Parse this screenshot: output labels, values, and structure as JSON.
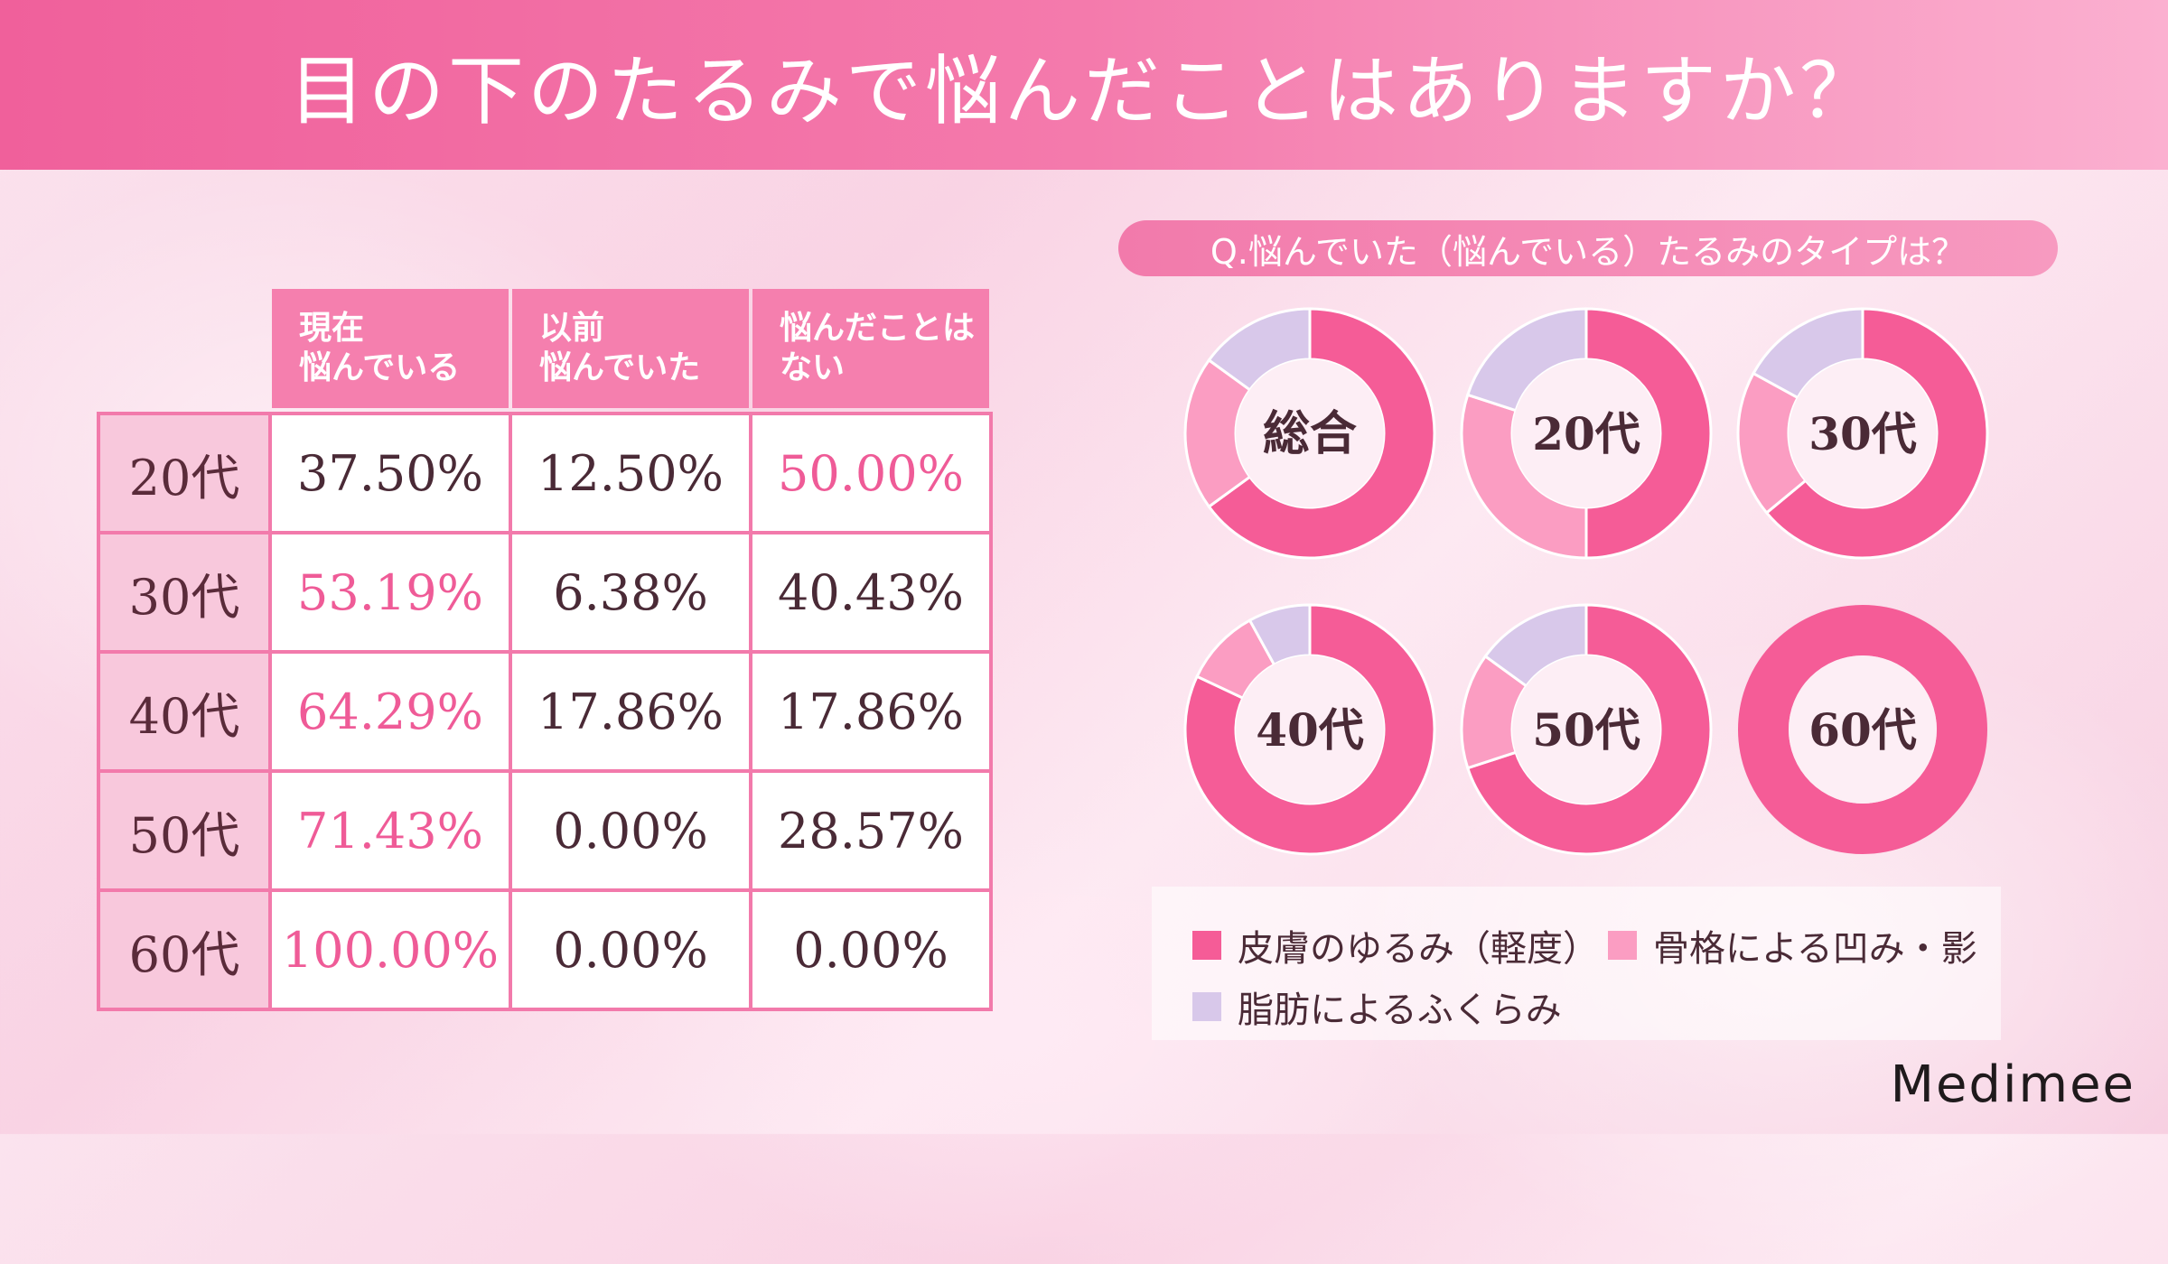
{
  "title": "目の下のたるみで悩んだことはありますか？",
  "table": {
    "headers": [
      "現在\n悩んでいる",
      "以前\n悩んでいた",
      "悩んだことは\nない"
    ],
    "rows": [
      {
        "label": "20代",
        "values": [
          "37.50%",
          "12.50%",
          "50.00%"
        ],
        "highlight": 2
      },
      {
        "label": "30代",
        "values": [
          "53.19%",
          "6.38%",
          "40.43%"
        ],
        "highlight": 0
      },
      {
        "label": "40代",
        "values": [
          "64.29%",
          "17.86%",
          "17.86%"
        ],
        "highlight": 0
      },
      {
        "label": "50代",
        "values": [
          "71.43%",
          "0.00%",
          "28.57%"
        ],
        "highlight": 0
      },
      {
        "label": "60代",
        "values": [
          "100.00%",
          "0.00%",
          "0.00%"
        ],
        "highlight": 0
      }
    ]
  },
  "chart_data": {
    "type": "pie",
    "title": "Q.悩んでいた（悩んでいる）たるみのタイプは？",
    "series_names": [
      "皮膚のゆるみ（軽度）",
      "骨格による凹み・影",
      "脂肪によるふくらみ"
    ],
    "colors": [
      "#f55c97",
      "#fb9dc2",
      "#d8c8ea"
    ],
    "charts": [
      {
        "label": "総合",
        "values": [
          65,
          20,
          15
        ]
      },
      {
        "label": "20代",
        "values": [
          50,
          30,
          20
        ]
      },
      {
        "label": "30代",
        "values": [
          64,
          19,
          17
        ]
      },
      {
        "label": "40代",
        "values": [
          82,
          10,
          8
        ]
      },
      {
        "label": "50代",
        "values": [
          70,
          15,
          15
        ]
      },
      {
        "label": "60代",
        "values": [
          100,
          0,
          0
        ]
      }
    ]
  },
  "brand": "Medimee"
}
